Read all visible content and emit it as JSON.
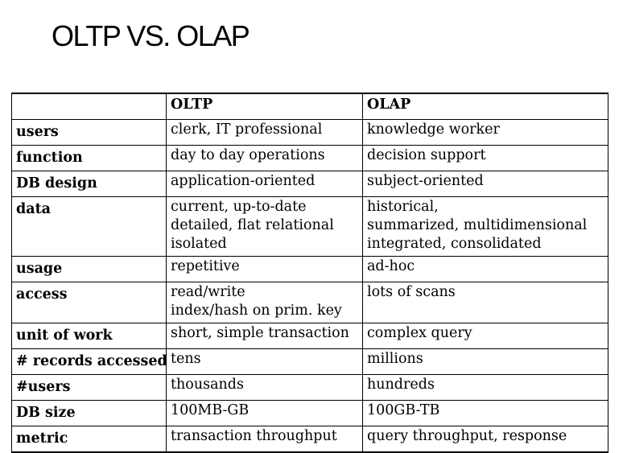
{
  "title": "OLTP VS. OLAP",
  "table": {
    "headers": [
      "",
      "OLTP",
      "OLAP"
    ],
    "rows": [
      {
        "label": "users",
        "oltp": [
          "clerk, IT professional"
        ],
        "olap": [
          "knowledge worker"
        ]
      },
      {
        "label": "function",
        "oltp": [
          "day to day operations"
        ],
        "olap": [
          "decision support"
        ]
      },
      {
        "label": "DB design",
        "oltp": [
          "application-oriented"
        ],
        "olap": [
          "subject-oriented"
        ]
      },
      {
        "label": "data",
        "oltp": [
          "current, up-to-date",
          "detailed, flat relational",
          "isolated"
        ],
        "olap": [
          "historical,",
          "summarized, multidimensional",
          "integrated, consolidated"
        ]
      },
      {
        "label": "usage",
        "oltp": [
          "repetitive"
        ],
        "olap": [
          "ad-hoc"
        ]
      },
      {
        "label": "access",
        "oltp": [
          "read/write",
          "index/hash on prim. key"
        ],
        "olap": [
          "lots of scans"
        ]
      },
      {
        "label": "unit of work",
        "oltp": [
          "short, simple transaction"
        ],
        "olap": [
          "complex query"
        ]
      },
      {
        "label": "# records accessed",
        "oltp": [
          "tens"
        ],
        "olap": [
          "millions"
        ]
      },
      {
        "label": "#users",
        "oltp": [
          "thousands"
        ],
        "olap": [
          "hundreds"
        ]
      },
      {
        "label": "DB size",
        "oltp": [
          "100MB-GB"
        ],
        "olap": [
          "100GB-TB"
        ]
      },
      {
        "label": "metric",
        "oltp": [
          "transaction throughput"
        ],
        "olap": [
          "query throughput, response"
        ]
      }
    ]
  }
}
